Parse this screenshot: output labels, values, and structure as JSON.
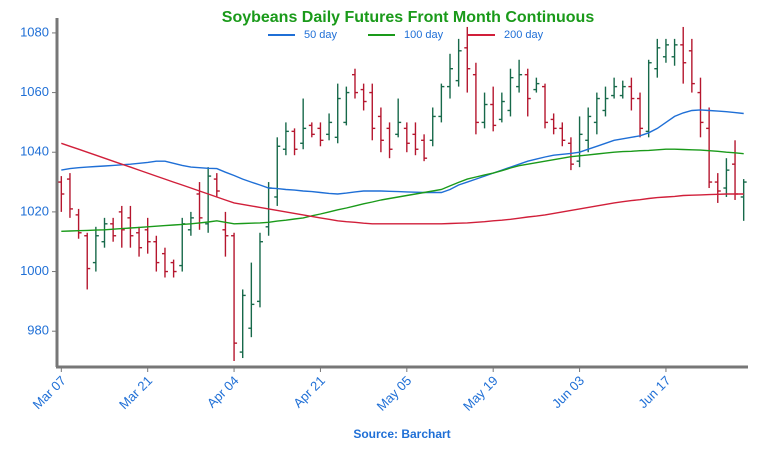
{
  "chart_data": {
    "type": "ohlc",
    "title": "Soybeans Daily Futures Front Month Continuous",
    "source": "Source: Barchart",
    "categories": [
      "Mar 07",
      null,
      null,
      null,
      null,
      null,
      null,
      null,
      null,
      null,
      "Mar 21",
      null,
      null,
      null,
      null,
      null,
      null,
      null,
      null,
      null,
      "Apr 04",
      null,
      null,
      null,
      null,
      null,
      null,
      null,
      null,
      null,
      "Apr 21",
      null,
      null,
      null,
      null,
      null,
      null,
      null,
      null,
      null,
      "May 05",
      null,
      null,
      null,
      null,
      null,
      null,
      null,
      null,
      null,
      "May 19",
      null,
      null,
      null,
      null,
      null,
      null,
      null,
      null,
      null,
      "Jun 03",
      null,
      null,
      null,
      null,
      null,
      null,
      null,
      null,
      null,
      "Jun 17",
      null,
      null,
      null,
      null,
      null,
      null,
      null,
      null,
      null
    ],
    "open": [
      1030,
      1031,
      1019,
      1012,
      1003,
      1010,
      1016,
      1020,
      1018,
      1013,
      1014,
      1010,
      1006,
      1003,
      1002,
      1014,
      1026,
      1016,
      1031,
      1014,
      1012,
      973,
      981,
      990,
      1015,
      1025,
      1041,
      1047,
      1043,
      1049,
      1048,
      1046,
      1045,
      1050,
      1066,
      1061,
      1060,
      1052,
      1048,
      1046,
      1048,
      1046,
      1044,
      1044,
      1052,
      1062,
      1064,
      1075,
      1066,
      1050,
      1056,
      1051,
      1054,
      1062,
      1066,
      1061,
      1062,
      1051,
      1048,
      1043,
      1037,
      1044,
      1050,
      1054,
      1059,
      1059,
      1062,
      1058,
      1047,
      1068,
      1072,
      1072,
      1076,
      1074,
      1060,
      1048,
      1030,
      1028,
      1036,
      1025
    ],
    "high": [
      1032,
      1033,
      1021,
      1013,
      1015,
      1018,
      1018,
      1022,
      1022,
      1015,
      1018,
      1012,
      1008,
      1004,
      1018,
      1020,
      1030,
      1035,
      1033,
      1020,
      1013,
      994,
      1003,
      1013,
      1030,
      1045,
      1050,
      1048,
      1058,
      1050,
      1050,
      1053,
      1063,
      1062,
      1068,
      1063,
      1063,
      1055,
      1050,
      1058,
      1050,
      1050,
      1046,
      1055,
      1063,
      1073,
      1078,
      1082,
      1070,
      1060,
      1062,
      1060,
      1068,
      1071,
      1068,
      1065,
      1063,
      1053,
      1050,
      1045,
      1052,
      1055,
      1060,
      1062,
      1065,
      1064,
      1065,
      1060,
      1071,
      1078,
      1078,
      1078,
      1082,
      1078,
      1065,
      1055,
      1033,
      1038,
      1044,
      1031
    ],
    "low": [
      1020,
      1018,
      1011,
      994,
      1000,
      1008,
      1010,
      1008,
      1008,
      1005,
      1006,
      1000,
      998,
      998,
      1000,
      1012,
      1014,
      1013,
      1025,
      1005,
      970,
      971,
      978,
      988,
      1012,
      1022,
      1039,
      1039,
      1041,
      1045,
      1042,
      1044,
      1043,
      1049,
      1058,
      1054,
      1044,
      1040,
      1038,
      1045,
      1040,
      1039,
      1037,
      1042,
      1050,
      1058,
      1062,
      1060,
      1046,
      1048,
      1047,
      1050,
      1052,
      1060,
      1052,
      1060,
      1048,
      1046,
      1042,
      1034,
      1035,
      1040,
      1046,
      1052,
      1058,
      1058,
      1054,
      1045,
      1045,
      1065,
      1070,
      1069,
      1063,
      1060,
      1045,
      1028,
      1023,
      1025,
      1024,
      1017
    ],
    "close": [
      1026,
      1021,
      1013,
      1001,
      1012,
      1016,
      1012,
      1014,
      1012,
      1008,
      1010,
      1003,
      1000,
      1000,
      1016,
      1018,
      1018,
      1032,
      1027,
      1012,
      976,
      992,
      989,
      1010,
      1028,
      1042,
      1047,
      1041,
      1048,
      1046,
      1044,
      1050,
      1058,
      1060,
      1060,
      1057,
      1048,
      1044,
      1041,
      1050,
      1043,
      1041,
      1038,
      1052,
      1062,
      1068,
      1074,
      1068,
      1050,
      1056,
      1049,
      1057,
      1065,
      1066,
      1058,
      1063,
      1050,
      1048,
      1044,
      1036,
      1046,
      1052,
      1058,
      1058,
      1062,
      1062,
      1058,
      1048,
      1070,
      1075,
      1076,
      1076,
      1070,
      1063,
      1050,
      1030,
      1027,
      1034,
      1026,
      1030
    ],
    "up_color": "#17694a",
    "down_color": "#b5162e",
    "series": [
      {
        "name": "50 day",
        "color": "#1f6fd6",
        "values": [
          1034.0,
          1034.5,
          1034.8,
          1035.0,
          1035.2,
          1035.4,
          1035.6,
          1035.8,
          1036.0,
          1036.3,
          1036.6,
          1037.0,
          1037.0,
          1036.3,
          1035.6,
          1035.0,
          1034.8,
          1034.6,
          1034.5,
          1033.3,
          1032.2,
          1031.0,
          1030.0,
          1029.0,
          1028.0,
          1027.8,
          1027.5,
          1027.3,
          1027.0,
          1026.8,
          1026.5,
          1026.2,
          1026.0,
          1026.3,
          1026.7,
          1027.0,
          1027.0,
          1027.0,
          1026.9,
          1026.8,
          1026.7,
          1026.6,
          1026.5,
          1026.5,
          1026.5,
          1027.5,
          1029.0,
          1030.0,
          1031.0,
          1032.0,
          1033.0,
          1034.0,
          1035.0,
          1036.0,
          1037.0,
          1037.7,
          1038.4,
          1039.0,
          1039.3,
          1039.6,
          1040.0,
          1041.0,
          1042.0,
          1043.0,
          1044.0,
          1044.5,
          1045.0,
          1045.5,
          1046.5,
          1048.0,
          1050.0,
          1052.0,
          1053.2,
          1054.0,
          1054.2,
          1054.0,
          1053.8,
          1053.6,
          1053.3,
          1053.0
        ]
      },
      {
        "name": "100 day",
        "color": "#1a9a1a",
        "values": [
          1013.5,
          1013.6,
          1013.7,
          1013.8,
          1013.9,
          1014.0,
          1014.2,
          1014.4,
          1014.6,
          1014.8,
          1015.0,
          1015.2,
          1015.4,
          1015.6,
          1015.8,
          1016.0,
          1016.3,
          1016.6,
          1017.0,
          1016.5,
          1016.0,
          1016.1,
          1016.2,
          1016.3,
          1016.5,
          1016.9,
          1017.2,
          1017.6,
          1018.0,
          1018.7,
          1019.3,
          1020.0,
          1020.7,
          1021.3,
          1022.0,
          1022.7,
          1023.3,
          1024.0,
          1024.5,
          1025.0,
          1025.5,
          1026.0,
          1026.5,
          1027.0,
          1027.5,
          1028.7,
          1029.9,
          1031.0,
          1031.7,
          1032.4,
          1033.0,
          1033.8,
          1034.7,
          1035.5,
          1036.0,
          1036.5,
          1037.0,
          1037.5,
          1038.0,
          1038.5,
          1038.8,
          1039.1,
          1039.4,
          1039.7,
          1040.0,
          1040.2,
          1040.3,
          1040.5,
          1040.6,
          1040.8,
          1041.0,
          1041.0,
          1040.9,
          1040.8,
          1040.7,
          1040.5,
          1040.3,
          1040.0,
          1039.8,
          1039.5
        ]
      },
      {
        "name": "200 day",
        "color": "#d11f3a",
        "values": [
          1043.0,
          1042.0,
          1041.0,
          1040.0,
          1039.0,
          1038.0,
          1037.0,
          1036.0,
          1035.0,
          1034.0,
          1033.0,
          1032.0,
          1031.0,
          1030.0,
          1029.0,
          1028.0,
          1027.0,
          1026.0,
          1025.0,
          1024.0,
          1023.0,
          1022.5,
          1022.0,
          1021.5,
          1021.0,
          1020.5,
          1020.0,
          1019.5,
          1019.0,
          1018.5,
          1018.0,
          1017.5,
          1017.0,
          1016.7,
          1016.5,
          1016.2,
          1016.0,
          1016.0,
          1016.0,
          1016.0,
          1016.0,
          1016.0,
          1016.0,
          1016.0,
          1016.0,
          1016.1,
          1016.2,
          1016.3,
          1016.5,
          1016.7,
          1017.0,
          1017.2,
          1017.5,
          1017.9,
          1018.3,
          1018.6,
          1019.0,
          1019.5,
          1020.0,
          1020.5,
          1021.0,
          1021.5,
          1022.0,
          1022.5,
          1023.0,
          1023.4,
          1023.8,
          1024.1,
          1024.5,
          1024.8,
          1025.0,
          1025.2,
          1025.5,
          1025.6,
          1025.7,
          1025.8,
          1025.9,
          1026.0,
          1026.0,
          1026.0
        ]
      }
    ],
    "ylim": [
      968,
      1085
    ],
    "yticks": [
      980,
      1000,
      1020,
      1040,
      1060,
      1080
    ]
  }
}
